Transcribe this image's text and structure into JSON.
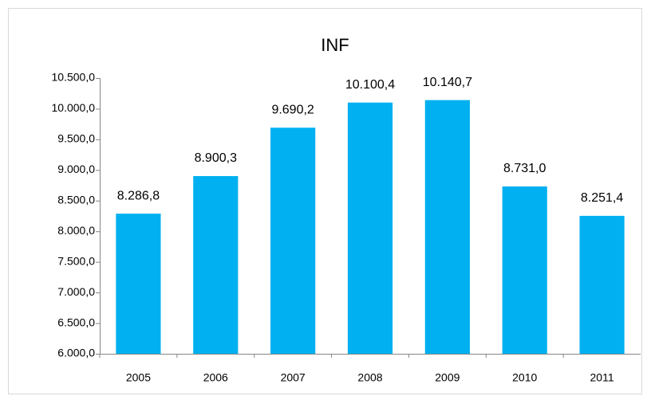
{
  "chart_data": {
    "type": "bar",
    "title": "INF",
    "categories": [
      "2005",
      "2006",
      "2007",
      "2008",
      "2009",
      "2010",
      "2011"
    ],
    "values": [
      8286.8,
      8900.3,
      9690.2,
      10100.4,
      10140.7,
      8731.0,
      8251.4
    ],
    "value_labels": [
      "8.286,8",
      "8.900,3",
      "9.690,2",
      "10.100,4",
      "10.140,7",
      "8.731,0",
      "8.251,4"
    ],
    "color": "#00b0f0",
    "ylim": [
      6000,
      10500
    ],
    "yticks": [
      {
        "value": 6000,
        "label": "6.000,0"
      },
      {
        "value": 6500,
        "label": "6.500,0"
      },
      {
        "value": 7000,
        "label": "7.000,0"
      },
      {
        "value": 7500,
        "label": "7.500,0"
      },
      {
        "value": 8000,
        "label": "8.000,0"
      },
      {
        "value": 8500,
        "label": "8.500,0"
      },
      {
        "value": 9000,
        "label": "9.000,0"
      },
      {
        "value": 9500,
        "label": "9.500,0"
      },
      {
        "value": 10000,
        "label": "10.000,0"
      },
      {
        "value": 10500,
        "label": "10.500,0"
      }
    ],
    "grid": false
  }
}
